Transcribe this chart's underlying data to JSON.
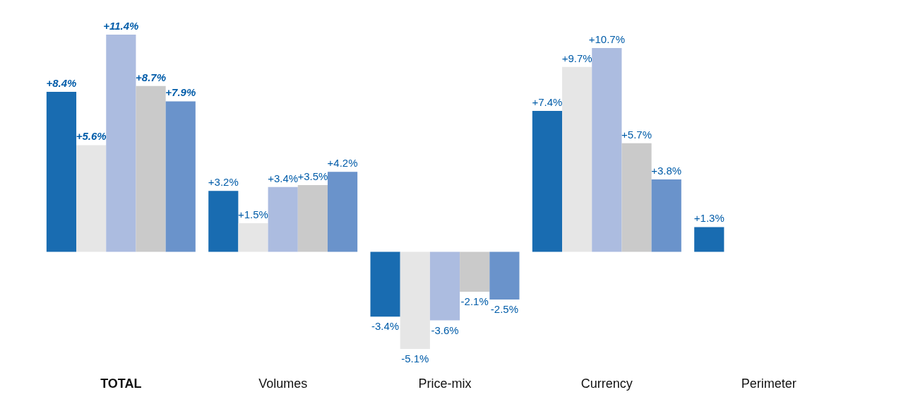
{
  "chart_data": {
    "type": "bar",
    "categories": [
      "TOTAL",
      "Volumes",
      "Price-mix",
      "Currency",
      "Perimeter"
    ],
    "series": [
      {
        "color": "#005ca9",
        "values": [
          8.4,
          3.2,
          -3.4,
          7.4,
          1.3
        ],
        "value_labels": [
          "+8.4%",
          "+3.2%",
          "-3.4%",
          "+7.4%",
          "+1.3%"
        ]
      },
      {
        "color": "#e3e3e3",
        "values": [
          5.6,
          1.5,
          -5.1,
          9.7,
          null
        ],
        "value_labels": [
          "+5.6%",
          "+1.5%",
          "-5.1%",
          "+9.7%",
          null
        ]
      },
      {
        "color": "#a3b5dd",
        "values": [
          11.4,
          3.4,
          -3.6,
          10.7,
          null
        ],
        "value_labels": [
          "+11.4%",
          "+3.4%",
          "-3.6%",
          "+10.7%",
          null
        ]
      },
      {
        "color": "#c4c4c4",
        "values": [
          8.7,
          3.5,
          -2.1,
          5.7,
          null
        ],
        "value_labels": [
          "+8.7%",
          "+3.5%",
          "-2.1%",
          "+5.7%",
          null
        ]
      },
      {
        "color": "#5a87c5",
        "values": [
          7.9,
          4.2,
          -2.5,
          3.8,
          null
        ],
        "value_labels": [
          "+7.9%",
          "+4.2%",
          "-2.5%",
          "+3.8%",
          null
        ]
      }
    ],
    "legend": false,
    "grid": false
  }
}
